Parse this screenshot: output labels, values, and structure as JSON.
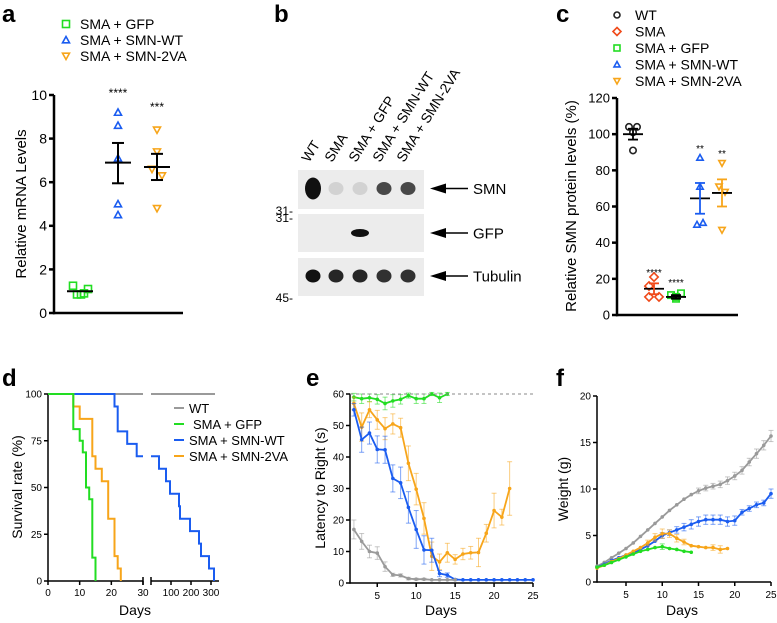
{
  "colors": {
    "wt": "#9a9a9a",
    "wt_dark": "#222222",
    "sma": "#f04a1a",
    "gfp": "#22dd22",
    "smn_wt": "#1a5cf0",
    "smn_2va": "#f7a51a",
    "axis": "#000000"
  },
  "panels": {
    "a": "a",
    "b": "b",
    "c": "c",
    "d": "d",
    "e": "e",
    "f": "f"
  },
  "chart_data": [
    {
      "id": "a",
      "type": "scatter",
      "title": "",
      "ylabel": "Relative mRNA Levels",
      "xlabel": "",
      "ylim": [
        0,
        10
      ],
      "yticks": [
        "0",
        "2",
        "4",
        "6",
        "8",
        "10"
      ],
      "legend": [
        "SMA + GFP",
        "SMA + SMN-WT",
        "SMA + SMN-2VA"
      ],
      "legend_placement": "top",
      "series": [
        {
          "name": "SMA + GFP",
          "marker": "square",
          "values": [
            1.25,
            0.85,
            0.85,
            0.9,
            1.1
          ],
          "mean": 1.0,
          "sem": [
            0.95,
            1.05
          ],
          "significance": ""
        },
        {
          "name": "SMA + SMN-WT",
          "marker": "triangle-up",
          "values": [
            9.2,
            8.6,
            7.1,
            5.0,
            4.5
          ],
          "mean": 6.9,
          "sem": [
            5.95,
            7.8
          ],
          "significance": "****"
        },
        {
          "name": "SMA + SMN-2VA",
          "marker": "triangle-down",
          "values": [
            8.4,
            7.4,
            6.6,
            6.3,
            4.8
          ],
          "mean": 6.7,
          "sem": [
            6.1,
            7.3
          ],
          "significance": "***"
        }
      ]
    },
    {
      "id": "b",
      "type": "table",
      "title": "Western blot",
      "lanes": [
        "WT",
        "SMA",
        "SMA + GFP",
        "SMA + SMN-WT",
        "SMA + SMN-2VA"
      ],
      "blots": [
        {
          "label": "SMN",
          "marker_left": "31-",
          "marker_position": "bottom",
          "intensity": [
            1.0,
            0.08,
            0.1,
            0.75,
            0.75
          ]
        },
        {
          "label": "GFP",
          "marker_left": "31-",
          "marker_position": "top",
          "intensity": [
            0,
            0,
            1.0,
            0,
            0
          ]
        },
        {
          "label": "Tubulin",
          "marker_left": "45-",
          "marker_position": "bottom",
          "intensity": [
            1.0,
            0.9,
            0.9,
            0.85,
            0.85
          ]
        }
      ]
    },
    {
      "id": "c",
      "type": "scatter",
      "ylabel": "Relative SMN protein levels (%)",
      "xlabel": "",
      "ylim": [
        0,
        120
      ],
      "yticks": [
        "0",
        "20",
        "40",
        "60",
        "80",
        "100",
        "120"
      ],
      "legend": [
        "WT",
        "SMA",
        "SMA + GFP",
        "SMA + SMN-WT",
        "SMA + SMN-2VA"
      ],
      "legend_placement": "top",
      "series": [
        {
          "name": "WT",
          "marker": "circle",
          "values": [
            104,
            104,
            101,
            91
          ],
          "mean": 100,
          "sem": [
            97,
            103
          ],
          "significance": ""
        },
        {
          "name": "SMA",
          "marker": "diamond",
          "values": [
            21,
            16,
            10,
            10
          ],
          "mean": 14.5,
          "sem": [
            11.5,
            17.5
          ],
          "significance": "****"
        },
        {
          "name": "SMA + GFP",
          "marker": "square",
          "values": [
            11,
            9,
            12,
            10
          ],
          "mean": 10,
          "sem": [
            9,
            11
          ],
          "significance": "****"
        },
        {
          "name": "SMA + SMN-WT",
          "marker": "triangle-up",
          "values": [
            87,
            71,
            50,
            51
          ],
          "mean": 64.5,
          "sem": [
            56,
            73
          ],
          "significance": "**"
        },
        {
          "name": "SMA + SMN-2VA",
          "marker": "triangle-down",
          "values": [
            84,
            71,
            68,
            47
          ],
          "mean": 67.5,
          "sem": [
            60,
            75
          ],
          "significance": "**"
        }
      ]
    },
    {
      "id": "d",
      "type": "line",
      "ylabel": "Survival rate (%)",
      "xlabel": "Days",
      "ylim": [
        0,
        100
      ],
      "yticks": [
        "0",
        "25",
        "50",
        "75",
        "100"
      ],
      "xticks_left": [
        "0",
        "10",
        "20",
        "30"
      ],
      "xticks_right": [
        "100",
        "200",
        "300"
      ],
      "xlim_left": [
        0,
        30
      ],
      "xlim_right": [
        0,
        320
      ],
      "legend": [
        "WT",
        "SMA + GFP",
        "SMA + SMN-WT",
        "SMA + SMN-2VA"
      ],
      "legend_placement": "top-right",
      "series": [
        {
          "name": "WT",
          "steps": [
            [
              0,
              100
            ],
            [
              320,
              100
            ]
          ]
        },
        {
          "name": "SMA + GFP",
          "steps": [
            [
              0,
              100
            ],
            [
              8,
              100
            ],
            [
              8,
              93.75
            ],
            [
              8,
              81.25
            ],
            [
              10,
              81.25
            ],
            [
              10,
              75
            ],
            [
              11,
              75
            ],
            [
              11,
              68.75
            ],
            [
              12,
              68.75
            ],
            [
              12,
              50
            ],
            [
              13,
              50
            ],
            [
              13,
              43.75
            ],
            [
              14,
              43.75
            ],
            [
              14,
              12.5
            ],
            [
              15,
              12.5
            ],
            [
              15,
              0
            ]
          ]
        },
        {
          "name": "SMA + SMN-WT",
          "steps": [
            [
              0,
              100
            ],
            [
              21,
              100
            ],
            [
              21,
              93.3
            ],
            [
              22,
              93.3
            ],
            [
              22,
              80
            ],
            [
              25,
              80
            ],
            [
              25,
              73.3
            ],
            [
              28,
              73.3
            ],
            [
              28,
              66.7
            ],
            [
              30,
              66.7
            ],
            [
              40,
              66.7
            ],
            [
              40,
              60
            ],
            [
              75,
              60
            ],
            [
              75,
              53.3
            ],
            [
              95,
              53.3
            ],
            [
              95,
              46.7
            ],
            [
              140,
              46.7
            ],
            [
              140,
              40
            ],
            [
              145,
              40
            ],
            [
              145,
              33.3
            ],
            [
              195,
              33.3
            ],
            [
              195,
              26.7
            ],
            [
              240,
              26.7
            ],
            [
              240,
              20
            ],
            [
              250,
              20
            ],
            [
              250,
              13.3
            ],
            [
              290,
              13.3
            ],
            [
              290,
              6.7
            ],
            [
              315,
              6.7
            ],
            [
              315,
              0
            ]
          ]
        },
        {
          "name": "SMA + SMN-2VA",
          "steps": [
            [
              0,
              100
            ],
            [
              8,
              100
            ],
            [
              8,
              93.3
            ],
            [
              10,
              93.3
            ],
            [
              10,
              86.7
            ],
            [
              14,
              86.7
            ],
            [
              14,
              66.7
            ],
            [
              15,
              66.7
            ],
            [
              15,
              60
            ],
            [
              17,
              60
            ],
            [
              17,
              53.3
            ],
            [
              19,
              53.3
            ],
            [
              19,
              33.3
            ],
            [
              21,
              33.3
            ],
            [
              21,
              13.3
            ],
            [
              22,
              13.3
            ],
            [
              22,
              6.7
            ],
            [
              23,
              6.7
            ],
            [
              23,
              0
            ]
          ]
        }
      ]
    },
    {
      "id": "e",
      "type": "line",
      "ylabel": "Latency to Right (s)",
      "xlabel": "Days",
      "ylim": [
        0,
        60
      ],
      "xlim": [
        1.5,
        25
      ],
      "yticks": [
        "0",
        "10",
        "20",
        "30",
        "40",
        "50",
        "60"
      ],
      "xticks": [
        "5",
        "10",
        "15",
        "20",
        "25"
      ],
      "reference_line": 60,
      "series": [
        {
          "name": "SMA + GFP",
          "x": [
            2,
            3,
            4,
            5,
            6,
            7,
            8,
            9,
            10,
            11,
            12,
            13,
            14
          ],
          "y": [
            59,
            58.5,
            58.8,
            58.3,
            57,
            57.8,
            58.3,
            59.5,
            58.5,
            58.5,
            60,
            58.8,
            60
          ],
          "err": [
            1.2,
            1.5,
            1.2,
            1.5,
            2,
            2,
            1.5,
            0.8,
            1.5,
            1.5,
            0.5,
            1.5,
            0.5
          ]
        },
        {
          "name": "SMA + SMN-2VA",
          "x": [
            2,
            3,
            4,
            5,
            6,
            7,
            8,
            9,
            10,
            11,
            12,
            13,
            14,
            15,
            16,
            17,
            18,
            19,
            20,
            21,
            22
          ],
          "y": [
            57,
            49.5,
            55,
            51.8,
            49,
            50.5,
            49.3,
            38,
            29.8,
            20.5,
            8.5,
            6.7,
            9.6,
            7.5,
            9.2,
            9.6,
            9.7,
            15.8,
            23,
            20.9,
            30
          ],
          "err": [
            2,
            4.5,
            2.5,
            3,
            3.5,
            3.2,
            3,
            5.5,
            5,
            5,
            4.5,
            2.5,
            3,
            1.5,
            1.8,
            2,
            4.5,
            2.8,
            5.5,
            2.5,
            8.5
          ]
        },
        {
          "name": "SMA + SMN-WT",
          "x": [
            2,
            3,
            4,
            5,
            6,
            7,
            8,
            9,
            10,
            11,
            12,
            13,
            14,
            15,
            16,
            17,
            18,
            19,
            20,
            21,
            22,
            23,
            24,
            25
          ],
          "y": [
            55,
            45.5,
            47.6,
            42.4,
            42.3,
            33.2,
            31.8,
            24,
            17,
            10.5,
            10.4,
            3,
            2.5,
            1.1,
            1,
            1,
            1,
            1,
            1,
            1,
            1,
            1,
            1,
            1
          ],
          "err": [
            2,
            4,
            3.5,
            4.3,
            4.3,
            4.3,
            5,
            5,
            6,
            4.5,
            3.8,
            1,
            0.7,
            0.3,
            0.2,
            0.2,
            0.2,
            0.2,
            0.2,
            0.2,
            0.2,
            0.2,
            0.2,
            0.2
          ]
        },
        {
          "name": "WT",
          "x": [
            2,
            3,
            4,
            5,
            6,
            7,
            8,
            9,
            10,
            11,
            12,
            13,
            14,
            15
          ],
          "y": [
            17,
            13.2,
            10,
            9.5,
            5.2,
            2.6,
            2.4,
            1.4,
            1.2,
            1.2,
            1,
            1,
            1,
            1
          ],
          "err": [
            3,
            2.5,
            2,
            2,
            1.5,
            0.5,
            0.5,
            0.4,
            0.3,
            0.3,
            0.2,
            0.2,
            0.2,
            0.2
          ]
        }
      ]
    },
    {
      "id": "f",
      "type": "line",
      "ylabel": "Weight (g)",
      "xlabel": "Days",
      "ylim": [
        0,
        20
      ],
      "xlim": [
        1,
        25
      ],
      "yticks": [
        "0",
        "5",
        "10",
        "15",
        "20"
      ],
      "xticks": [
        "5",
        "10",
        "15",
        "20",
        "25"
      ],
      "series": [
        {
          "name": "WT",
          "x": [
            1,
            2,
            3,
            4,
            5,
            6,
            7,
            8,
            9,
            10,
            11,
            12,
            13,
            14,
            15,
            16,
            17,
            18,
            19,
            20,
            21,
            22,
            23,
            24,
            25
          ],
          "y": [
            1.7,
            2.1,
            2.6,
            3.1,
            3.6,
            4.2,
            4.9,
            5.6,
            6.3,
            7.0,
            7.7,
            8.3,
            8.9,
            9.4,
            9.8,
            10.1,
            10.3,
            10.5,
            10.9,
            11.4,
            12.0,
            12.9,
            13.8,
            14.7,
            15.7
          ],
          "err": [
            0.1,
            0.1,
            0.1,
            0.1,
            0.1,
            0.1,
            0.1,
            0.1,
            0.15,
            0.2,
            0.2,
            0.2,
            0.2,
            0.2,
            0.3,
            0.3,
            0.3,
            0.35,
            0.4,
            0.4,
            0.4,
            0.4,
            0.5,
            0.5,
            0.6
          ]
        },
        {
          "name": "SMA + SMN-WT",
          "x": [
            1,
            2,
            3,
            4,
            5,
            6,
            7,
            8,
            9,
            10,
            11,
            12,
            13,
            14,
            15,
            16,
            17,
            18,
            19,
            20,
            21,
            22,
            23,
            24,
            25
          ],
          "y": [
            1.6,
            1.9,
            2.3,
            2.6,
            2.9,
            3.1,
            3.5,
            3.9,
            4.4,
            5.0,
            5.3,
            5.6,
            5.9,
            6.2,
            6.5,
            6.7,
            6.7,
            6.7,
            6.5,
            6.6,
            7.5,
            7.9,
            8.3,
            8.5,
            9.5
          ],
          "err": [
            0.1,
            0.1,
            0.1,
            0.1,
            0.1,
            0.15,
            0.2,
            0.2,
            0.25,
            0.3,
            0.3,
            0.35,
            0.4,
            0.5,
            0.5,
            0.5,
            0.5,
            0.5,
            0.5,
            0.5,
            0.3,
            0.3,
            0.3,
            0.3,
            0.5
          ]
        },
        {
          "name": "SMA + SMN-2VA",
          "x": [
            1,
            2,
            3,
            4,
            5,
            6,
            7,
            8,
            9,
            10,
            11,
            12,
            13,
            14,
            15,
            16,
            17,
            18,
            19
          ],
          "y": [
            1.5,
            1.8,
            2.2,
            2.5,
            2.9,
            3.3,
            3.7,
            4.2,
            4.8,
            5.2,
            5.2,
            4.7,
            4.3,
            3.9,
            3.8,
            3.7,
            3.7,
            3.5,
            3.6
          ],
          "err": [
            0.1,
            0.1,
            0.1,
            0.1,
            0.15,
            0.2,
            0.2,
            0.3,
            0.4,
            0.5,
            0.4,
            0.4,
            0.3,
            0.2,
            0.2,
            0.2,
            0.3,
            0.4,
            0.2
          ]
        },
        {
          "name": "SMA + GFP",
          "x": [
            1,
            2,
            3,
            4,
            5,
            6,
            7,
            8,
            9,
            10,
            11,
            12,
            13,
            14
          ],
          "y": [
            1.6,
            1.8,
            2.1,
            2.4,
            2.7,
            3.0,
            3.3,
            3.5,
            3.7,
            3.8,
            3.6,
            3.5,
            3.3,
            3.2
          ],
          "err": [
            0.1,
            0.1,
            0.1,
            0.1,
            0.1,
            0.1,
            0.15,
            0.15,
            0.2,
            0.3,
            0.2,
            0.2,
            0.2,
            0.2
          ]
        }
      ]
    }
  ]
}
